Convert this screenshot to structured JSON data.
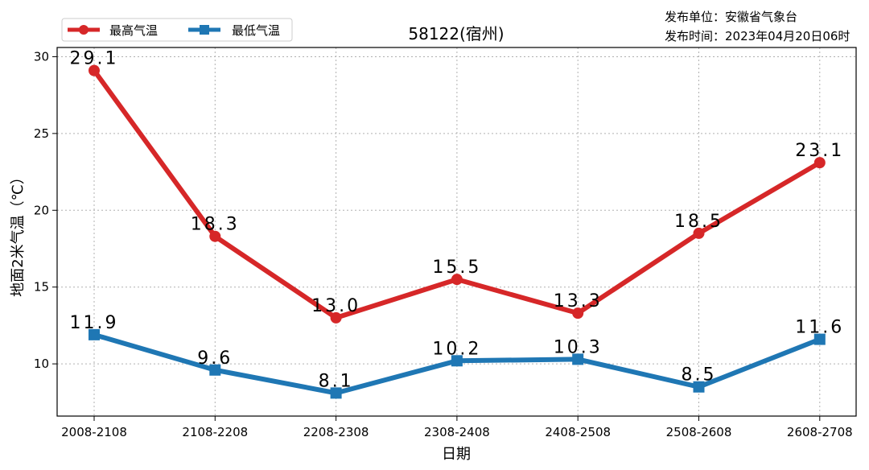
{
  "publisher": {
    "unit": "发布单位：安徽省气象台",
    "time": "发布时间：2023年04月20日06时"
  },
  "chart_data": {
    "type": "line",
    "title": "58122(宿州)",
    "xlabel": "日期",
    "ylabel": "地面2米气温（℃）",
    "categories": [
      "2008-2108",
      "2108-2208",
      "2208-2308",
      "2308-2408",
      "2408-2508",
      "2508-2608",
      "2608-2708"
    ],
    "ylim": [
      6.6,
      30.6
    ],
    "yticks": [
      10,
      15,
      20,
      25,
      30
    ],
    "grid": true,
    "legend_position": "top-left",
    "series": [
      {
        "name": "最高气温",
        "color": "#d62728",
        "marker": "circle",
        "values": [
          29.1,
          18.3,
          13.0,
          15.5,
          13.3,
          18.5,
          23.1
        ],
        "labels": [
          "29.1",
          "18.3",
          "13.0",
          "15.5",
          "13.3",
          "18.5",
          "23.1"
        ]
      },
      {
        "name": "最低气温",
        "color": "#1f77b4",
        "marker": "square",
        "values": [
          11.9,
          9.6,
          8.1,
          10.2,
          10.3,
          8.5,
          11.6
        ],
        "labels": [
          "11.9",
          "9.6",
          "8.1",
          "10.2",
          "10.3",
          "8.5",
          "11.6"
        ]
      }
    ]
  }
}
